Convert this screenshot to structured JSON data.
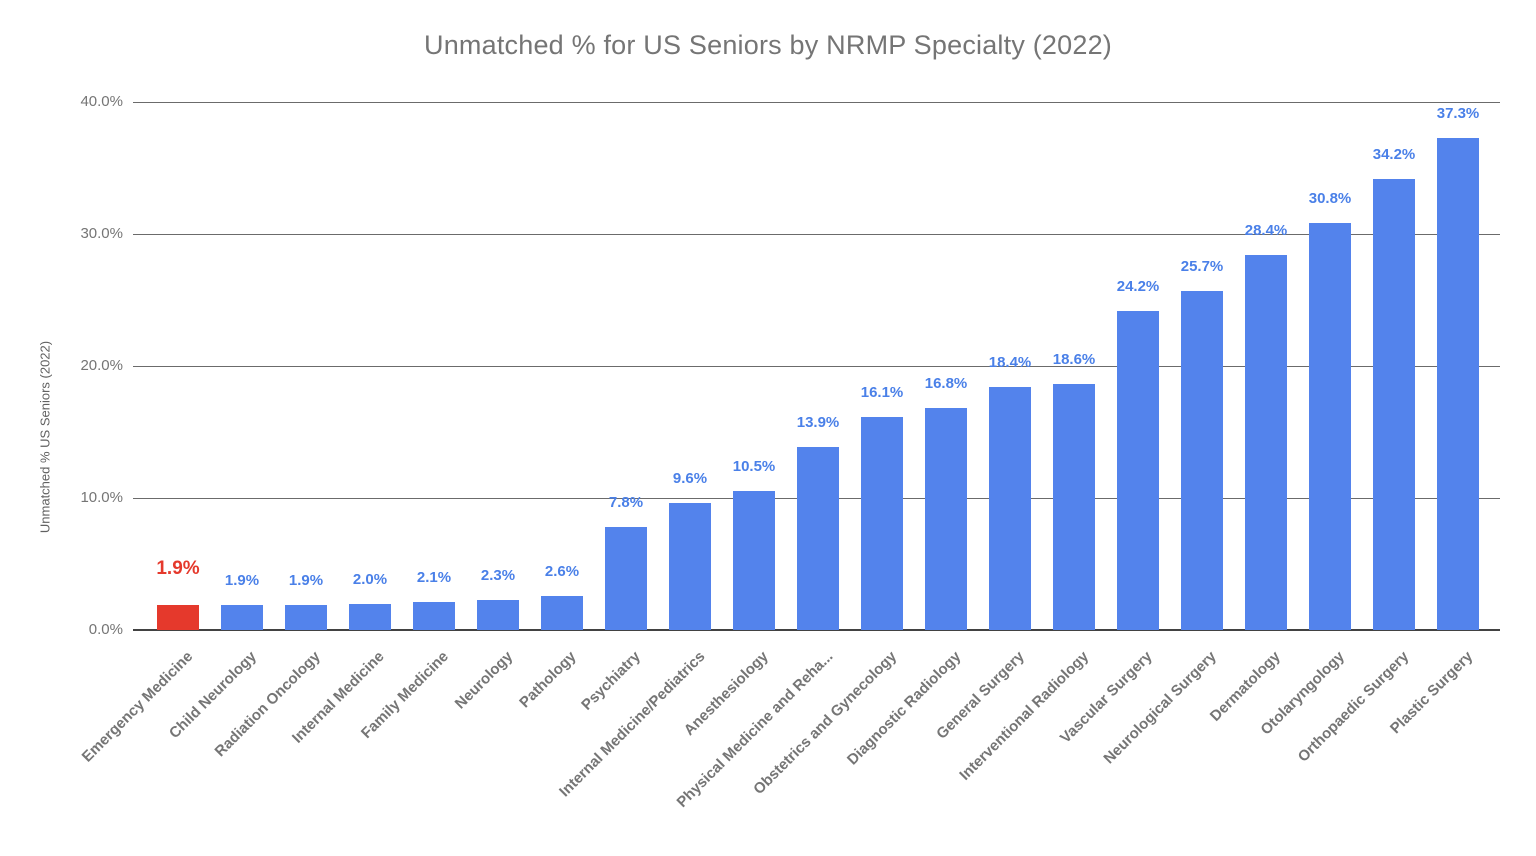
{
  "chart_data": {
    "type": "bar",
    "title": "Unmatched % for US Seniors by NRMP Specialty (2022)",
    "ylabel": "Unmatched % US Seniors (2022)",
    "xlabel": "",
    "categories": [
      "Emergency Medicine",
      "Child Neurology",
      "Radiation Oncology",
      "Internal Medicine",
      "Family Medicine",
      "Neurology",
      "Pathology",
      "Psychiatry",
      "Internal Medicine/Pediatrics",
      "Anesthesiology",
      "Physical Medicine and Reha...",
      "Obstetrics and Gynecology",
      "Diagnostic Radiology",
      "General Surgery",
      "Interventional Radiology",
      "Vascular Surgery",
      "Neurological Surgery",
      "Dermatology",
      "Otolaryngology",
      "Orthopaedic Surgery",
      "Plastic Surgery"
    ],
    "values": [
      1.9,
      1.9,
      1.9,
      2.0,
      2.1,
      2.3,
      2.6,
      7.8,
      9.6,
      10.5,
      13.9,
      16.1,
      16.8,
      18.4,
      18.6,
      24.2,
      25.7,
      28.4,
      30.8,
      34.2,
      37.3
    ],
    "labels": [
      "1.9%",
      "1.9%",
      "1.9%",
      "2.0%",
      "2.1%",
      "2.3%",
      "2.6%",
      "7.8%",
      "9.6%",
      "10.5%",
      "13.9%",
      "16.1%",
      "16.8%",
      "18.4%",
      "18.6%",
      "24.2%",
      "25.7%",
      "28.4%",
      "30.8%",
      "34.2%",
      "37.3%"
    ],
    "highlight_index": 0,
    "ylim": [
      0,
      40
    ],
    "yticks": {
      "values": [
        0,
        10,
        20,
        30,
        40
      ],
      "labels": [
        "0.0%",
        "10.0%",
        "20.0%",
        "30.0%",
        "40.0%"
      ]
    },
    "grid": "on",
    "legend_position": "none",
    "colors": {
      "bar": "#5383EC",
      "highlight": "#E5392C",
      "value_label": "#4A80E8",
      "value_label_highlight": "#E5392C",
      "grid_line": "#6b6b6b",
      "axis_line": "#424242",
      "axis_text": "#757575",
      "title_text": "#757575"
    }
  }
}
